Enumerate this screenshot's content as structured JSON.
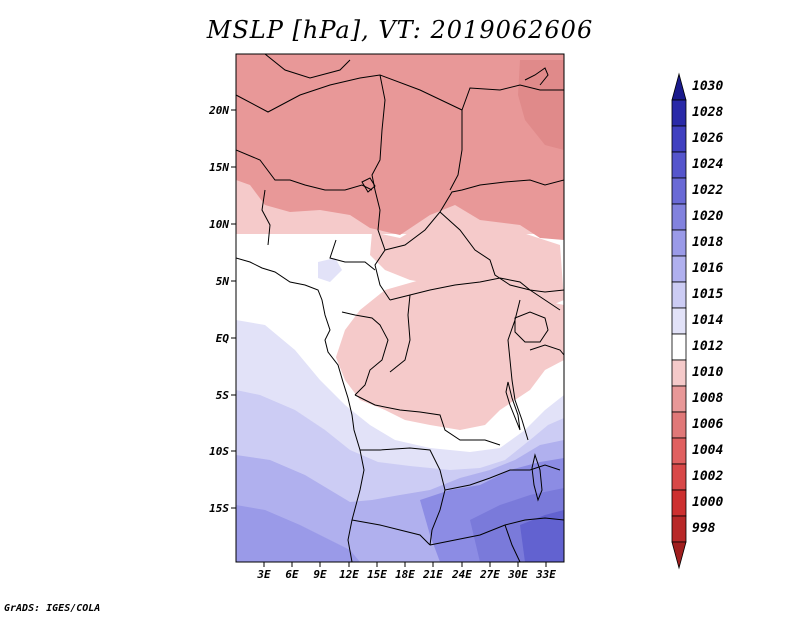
{
  "title": "MSLP [hPa], VT: 2019062606",
  "credit": "GrADS: IGES/COLA",
  "map": {
    "lat_labels": [
      "20N",
      "15N",
      "10N",
      "5N",
      "EQ",
      "5S",
      "10S",
      "15S"
    ],
    "lon_labels": [
      "3E",
      "6E",
      "9E",
      "12E",
      "15E",
      "18E",
      "21E",
      "24E",
      "27E",
      "30E",
      "33E"
    ]
  },
  "colorbar": {
    "levels": [
      "998",
      "1000",
      "1002",
      "1004",
      "1006",
      "1008",
      "1010",
      "1012",
      "1014",
      "1015",
      "1016",
      "1018",
      "1020",
      "1022",
      "1024",
      "1026",
      "1028",
      "1030"
    ],
    "colors": [
      "#a01e1e",
      "#b82828",
      "#cd3030",
      "#d84848",
      "#e06060",
      "#e07878",
      "#e89898",
      "#f5caca",
      "#ffffff",
      "#e2e2f8",
      "#ccccf4",
      "#b0b0ee",
      "#9a9ae8",
      "#8282de",
      "#6a6ad6",
      "#5555cc",
      "#4040c0",
      "#2a2aa8",
      "#1a1a8c"
    ]
  }
}
